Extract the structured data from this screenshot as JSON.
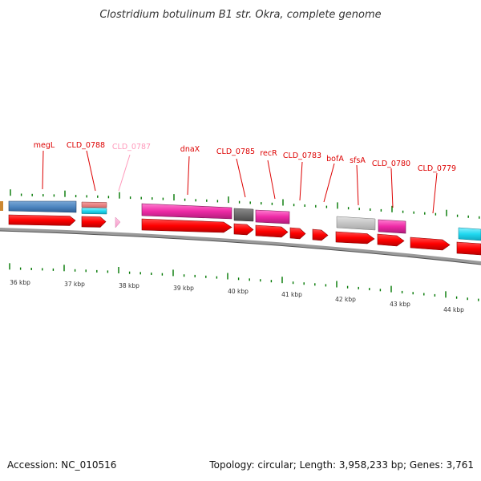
{
  "title": "Clostridium botulinum B1 str. Okra, complete genome",
  "footer": {
    "accession": "Accession: NC_010516",
    "stats": "Topology: circular; Length: 3,958,233 bp; Genes: 3,761"
  },
  "colors": {
    "cds_arrow": "#ff0000",
    "label_default": "#dd0000",
    "label_faded": "#ff99bb",
    "tick": "#007700",
    "backbone": "#888888"
  },
  "genes": [
    {
      "label": "megL",
      "label_color": "#dd0000"
    },
    {
      "label": "CLD_0788",
      "label_color": "#dd0000"
    },
    {
      "label": "CLD_0787",
      "label_color": "#ff99bb"
    },
    {
      "label": "dnaX",
      "label_color": "#dd0000"
    },
    {
      "label": "CLD_0785",
      "label_color": "#dd0000"
    },
    {
      "label": "recR",
      "label_color": "#dd0000"
    },
    {
      "label": "CLD_0783",
      "label_color": "#dd0000"
    },
    {
      "label": "bofA",
      "label_color": "#dd0000"
    },
    {
      "label": "sfsA",
      "label_color": "#dd0000"
    },
    {
      "label": "CLD_0780",
      "label_color": "#dd0000"
    },
    {
      "label": "CLD_0779",
      "label_color": "#dd0000"
    }
  ],
  "ticks": [
    "36 kbp",
    "37 kbp",
    "38 kbp",
    "39 kbp",
    "40 kbp",
    "41 kbp",
    "42 kbp",
    "43 kbp",
    "44 kbp"
  ]
}
